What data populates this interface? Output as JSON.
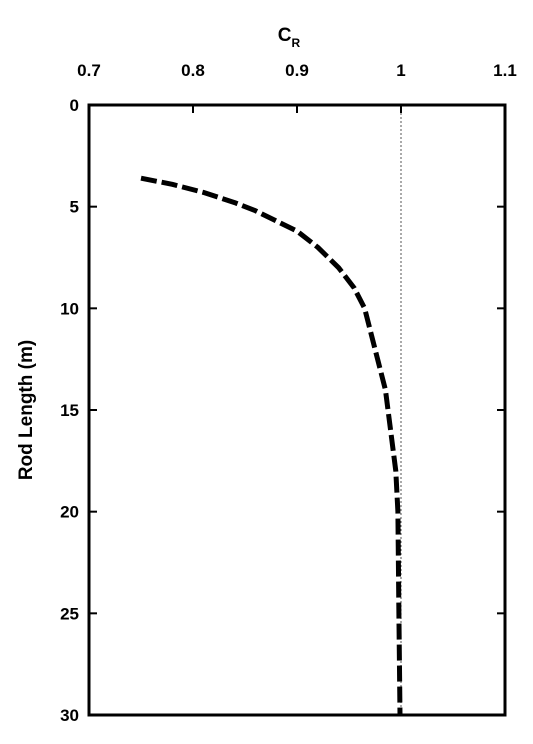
{
  "chart_data": {
    "type": "line",
    "x_axis": {
      "label": "C",
      "label_subscript": "R",
      "position": "top",
      "range": [
        0.7,
        1.1
      ],
      "ticks": [
        0.7,
        0.8,
        0.9,
        1.0,
        1.1
      ],
      "tick_labels": [
        "0.7",
        "0.8",
        "0.9",
        "1",
        "1.1"
      ]
    },
    "y_axis": {
      "label": "Rod Length (m)",
      "range": [
        0,
        30
      ],
      "inverted": true,
      "ticks": [
        0,
        5,
        10,
        15,
        20,
        25,
        30
      ],
      "tick_labels": [
        "0",
        "5",
        "10",
        "15",
        "20",
        "25",
        "30"
      ]
    },
    "grid": false,
    "reference_line": {
      "x": 1.0,
      "style": "dotted"
    },
    "series": [
      {
        "style": "dashed",
        "color": "#000000",
        "points": [
          {
            "cr": 0.75,
            "length": 3.6
          },
          {
            "cr": 0.78,
            "length": 3.9
          },
          {
            "cr": 0.81,
            "length": 4.3
          },
          {
            "cr": 0.84,
            "length": 4.8
          },
          {
            "cr": 0.86,
            "length": 5.2
          },
          {
            "cr": 0.88,
            "length": 5.7
          },
          {
            "cr": 0.9,
            "length": 6.2
          },
          {
            "cr": 0.92,
            "length": 7.0
          },
          {
            "cr": 0.94,
            "length": 8.0
          },
          {
            "cr": 0.955,
            "length": 9.0
          },
          {
            "cr": 0.965,
            "length": 10.0
          },
          {
            "cr": 0.975,
            "length": 12.0
          },
          {
            "cr": 0.985,
            "length": 14.0
          },
          {
            "cr": 0.99,
            "length": 16.0
          },
          {
            "cr": 0.995,
            "length": 18.0
          },
          {
            "cr": 0.997,
            "length": 20.0
          },
          {
            "cr": 0.998,
            "length": 25.0
          },
          {
            "cr": 0.999,
            "length": 30.0
          }
        ]
      }
    ]
  }
}
